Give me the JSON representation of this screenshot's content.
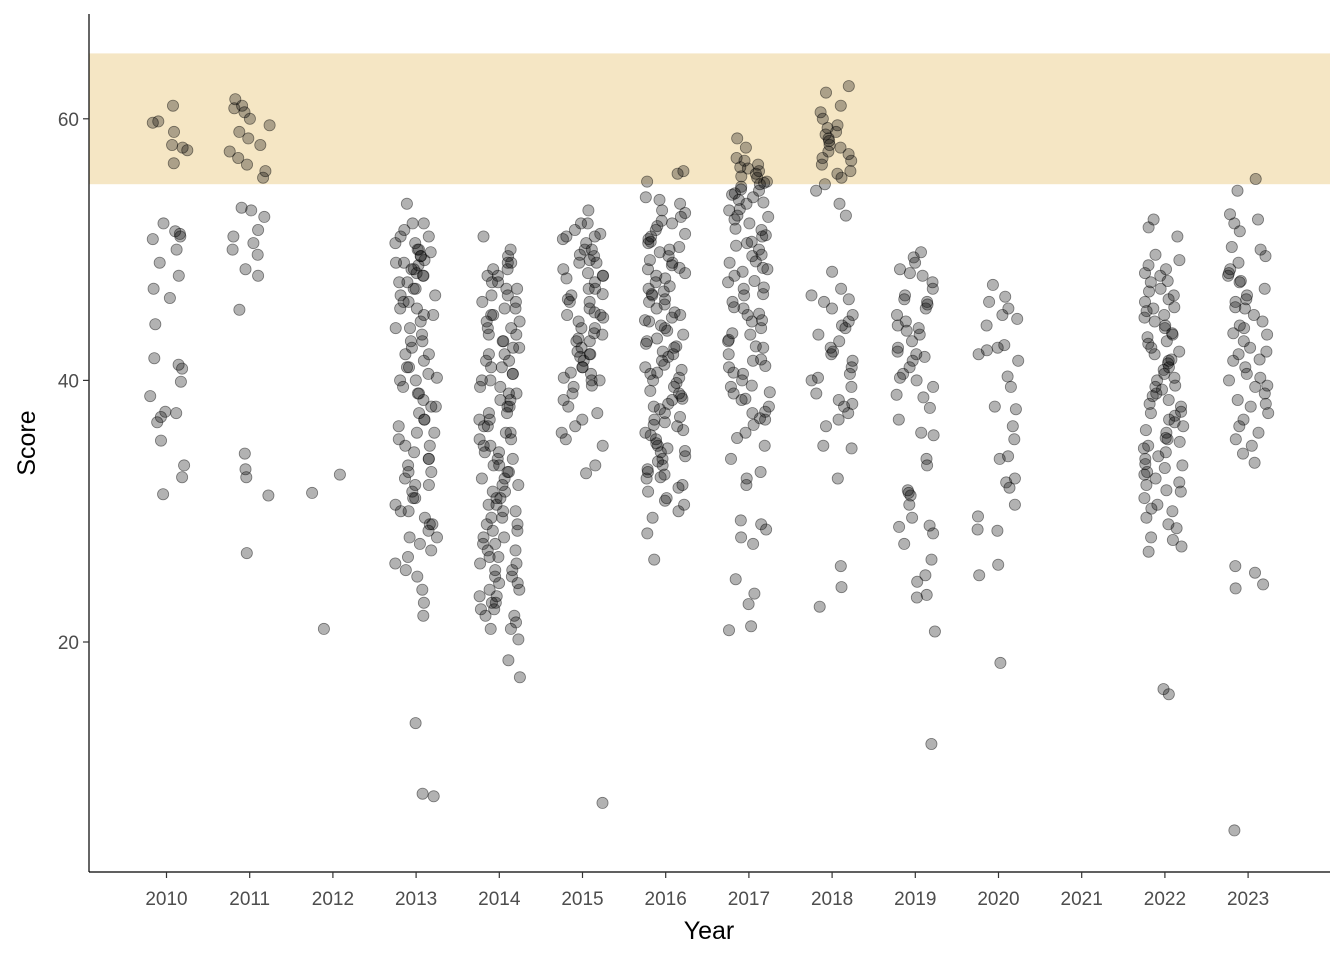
{
  "chart_data": {
    "type": "scatter",
    "title": "",
    "xlabel": "Year",
    "ylabel": "Score",
    "categories": [
      "2010",
      "2011",
      "2012",
      "2013",
      "2014",
      "2015",
      "2016",
      "2017",
      "2018",
      "2019",
      "2020",
      "2021",
      "2022",
      "2023"
    ],
    "y_ticks": [
      20,
      40,
      60
    ],
    "ylim": [
      3.5,
      68
    ],
    "grid": false,
    "legend": "none",
    "highlight_band": {
      "ymin": 55,
      "ymax": 65,
      "color": "#f5e6c4"
    },
    "point_style": {
      "color": "#000000",
      "opacity": 0.3
    },
    "groups": [
      {
        "year": "2010",
        "points": [
          61,
          59.8,
          58,
          57.6,
          59,
          56.6,
          59.7,
          57.8,
          51.4,
          51,
          50,
          49,
          48,
          47,
          46.3,
          44.3,
          41.7,
          41.2,
          40.9,
          39.9,
          38.8,
          37.6,
          37.5,
          37.2,
          36.8,
          35.4,
          33.5,
          32.6,
          31.3,
          52,
          51.2,
          50.8
        ]
      },
      {
        "year": "2011",
        "points": [
          61.5,
          61,
          60.5,
          60,
          59.5,
          58.5,
          58,
          57,
          56.5,
          56,
          55.5,
          53.2,
          53,
          52.5,
          51.5,
          51,
          50.5,
          50,
          49.6,
          48.5,
          48,
          45.4,
          34.4,
          33.2,
          32.6,
          31.2,
          26.8,
          57.5,
          59,
          60.8
        ]
      },
      {
        "year": "2012",
        "points": [
          32.8,
          31.4,
          21
        ]
      },
      {
        "year": "2013",
        "points": [
          53.5,
          52,
          51.5,
          51,
          50.5,
          50,
          49.8,
          49.5,
          49.2,
          49,
          48.8,
          48.5,
          48.2,
          48,
          47.5,
          47,
          46.5,
          46,
          45.5,
          45,
          44.5,
          44,
          43.5,
          43,
          42.5,
          42,
          41.5,
          41,
          40.5,
          40.2,
          40,
          39.5,
          39,
          38.5,
          38,
          37.5,
          37,
          36.5,
          36,
          35.5,
          35,
          34.5,
          34,
          33.5,
          33,
          32.5,
          32,
          31.5,
          31,
          30.5,
          30,
          29.5,
          29,
          28.5,
          28,
          27.5,
          27,
          26.5,
          26,
          25.5,
          25,
          24,
          23,
          22,
          13.8,
          8.4,
          8.2,
          52,
          51,
          50,
          49,
          48,
          47,
          46,
          45,
          44,
          43,
          42,
          41,
          40,
          39,
          38,
          37,
          36,
          35,
          34,
          33,
          32,
          31,
          30,
          29,
          28,
          50.5,
          49.5,
          48.5,
          47.5,
          46.5,
          45.5
        ]
      },
      {
        "year": "2014",
        "points": [
          51,
          50,
          49.5,
          49,
          48.5,
          48,
          47.5,
          47,
          46.5,
          46,
          45.5,
          45,
          44.5,
          44,
          43.5,
          43,
          42.5,
          42,
          41.5,
          41,
          40.5,
          40,
          39.5,
          39,
          38.5,
          38,
          37.5,
          37,
          36.5,
          36,
          35.5,
          35,
          34.5,
          34,
          33.5,
          33,
          32.5,
          32,
          31.5,
          31,
          30.5,
          30,
          29.5,
          29,
          28.5,
          28,
          27.5,
          27,
          26.5,
          26,
          25.5,
          25,
          24.5,
          24,
          23.5,
          23,
          22.5,
          22,
          21.5,
          21,
          20.2,
          18.6,
          17.3,
          49,
          48,
          47,
          46,
          45,
          44,
          43,
          42,
          41,
          40,
          39,
          38,
          37,
          36,
          35,
          34,
          33,
          32,
          31,
          30,
          29,
          28,
          27,
          26,
          25,
          24,
          23,
          22,
          21,
          48.5,
          46.5,
          44.5,
          42.5,
          40.5,
          38.5,
          36.5,
          34.5,
          32.5,
          30.5,
          28.5,
          26.5,
          24.5,
          22.5,
          47.5,
          45.5,
          43.5,
          41.5,
          39.5,
          37.5,
          35.5,
          33.5,
          31.5,
          29.5,
          27.5,
          25.5,
          23.5
        ]
      },
      {
        "year": "2015",
        "points": [
          53,
          52,
          51.5,
          51,
          50.5,
          50,
          49.5,
          49,
          48.5,
          48,
          47.5,
          47,
          46.5,
          46,
          45.5,
          45,
          44.5,
          44,
          43.5,
          43,
          42.5,
          42,
          41.5,
          41,
          40.5,
          40,
          39.5,
          39,
          38.5,
          38,
          37.5,
          37,
          36.5,
          36,
          35.5,
          35,
          33.5,
          32.9,
          7.7,
          51,
          50,
          49,
          48,
          47,
          46,
          45,
          44,
          43,
          42,
          41,
          40,
          52,
          50.8,
          49.2,
          47.8,
          46.2,
          44.8,
          43.2,
          41.8,
          40.2,
          51.2,
          49.6,
          48.2,
          46.6,
          45.2,
          43.6,
          42.2,
          40.6,
          39.6
        ]
      },
      {
        "year": "2016",
        "points": [
          55.2,
          54,
          53.5,
          53,
          52.5,
          52,
          51.5,
          51,
          50.5,
          50,
          49.5,
          49,
          48.5,
          48,
          47.5,
          47,
          46.5,
          46,
          45.5,
          45,
          44.5,
          44,
          43.5,
          43,
          42.5,
          42,
          41.5,
          41,
          40.5,
          40,
          39.5,
          39,
          38.5,
          38,
          37.5,
          37,
          36.5,
          36,
          35.5,
          35,
          34.5,
          34,
          33.5,
          33,
          32.5,
          32,
          31.5,
          31,
          30.5,
          30,
          29.5,
          28.3,
          26.3,
          56,
          55.8,
          53.8,
          52.8,
          51.8,
          50.8,
          49.8,
          48.8,
          47.8,
          46.8,
          45.8,
          44.8,
          43.8,
          42.8,
          41.8,
          40.8,
          39.8,
          38.8,
          37.8,
          36.8,
          35.8,
          34.8,
          33.8,
          32.8,
          31.8,
          30.8,
          52.2,
          50.2,
          48.2,
          46.2,
          44.2,
          42.2,
          40.2,
          38.2,
          36.2,
          34.2,
          51.2,
          49.2,
          47.2,
          45.2,
          43.2,
          41.2,
          39.2,
          37.2,
          35.2,
          33.2,
          50.6,
          48.6,
          46.6,
          44.6,
          42.6,
          40.6,
          38.6,
          36.6,
          34.6,
          32.6
        ]
      },
      {
        "year": "2017",
        "points": [
          58.5,
          57.8,
          57,
          56.8,
          56.5,
          56.2,
          56,
          55.8,
          55.5,
          55.2,
          55,
          54.8,
          54.5,
          54.2,
          54,
          53.8,
          53.5,
          53,
          52.5,
          52,
          51.5,
          51,
          50.5,
          50,
          49.5,
          49,
          48.5,
          48,
          47.5,
          47,
          46.5,
          46,
          45.5,
          45,
          44.5,
          44,
          43.5,
          43,
          42.5,
          42,
          41.5,
          41,
          40.5,
          40,
          39.5,
          39,
          38.5,
          38,
          37.5,
          37,
          36,
          35,
          34,
          33,
          32.5,
          32,
          29.3,
          29,
          28.6,
          28,
          27.5,
          24.8,
          23.7,
          22.9,
          21.2,
          20.9,
          55.6,
          54.6,
          53.6,
          52.6,
          51.6,
          50.6,
          49.6,
          48.6,
          47.6,
          46.6,
          45.6,
          44.6,
          43.6,
          42.6,
          41.6,
          40.6,
          39.6,
          38.6,
          37.6,
          36.6,
          35.6,
          55.1,
          53.1,
          51.1,
          49.1,
          47.1,
          45.1,
          43.1,
          41.1,
          39.1,
          37.1,
          56.3,
          54.3,
          52.3,
          50.3,
          48.3
        ]
      },
      {
        "year": "2018",
        "points": [
          62.5,
          62,
          61,
          60.5,
          60,
          59.5,
          59,
          58.5,
          58,
          57.5,
          57,
          56.5,
          56,
          55.5,
          55,
          54.5,
          53.5,
          52.6,
          48.3,
          47,
          46.5,
          46,
          45.5,
          45,
          44.5,
          44,
          43.5,
          43,
          42.5,
          42,
          41.5,
          41,
          40.5,
          40,
          39.5,
          39,
          38.5,
          38,
          37.5,
          37,
          36.5,
          35,
          34.8,
          32.5,
          25.8,
          24.2,
          22.7,
          58.8,
          57.8,
          56.8,
          55.8,
          59.3,
          58.3,
          57.3,
          46.2,
          44.2,
          42.2,
          40.2,
          38.2
        ]
      },
      {
        "year": "2019",
        "points": [
          49.8,
          49.4,
          49,
          48.5,
          48,
          47.5,
          47,
          46.5,
          46,
          45.5,
          45,
          44.5,
          44,
          43.5,
          43,
          42.5,
          42,
          41.5,
          41,
          40.5,
          40,
          39.5,
          38.9,
          38.7,
          37.9,
          37,
          36,
          35.8,
          34,
          33.5,
          31.6,
          31.4,
          31.2,
          30.5,
          29.5,
          28.9,
          28.8,
          28.3,
          27.5,
          26.3,
          25.1,
          24.6,
          23.6,
          23.4,
          20.8,
          12.2,
          48.2,
          46.2,
          44.2,
          42.2,
          40.2,
          45.8,
          43.8,
          41.8
        ]
      },
      {
        "year": "2020",
        "points": [
          47.3,
          46.4,
          46,
          45.5,
          45,
          44.7,
          44.2,
          42.7,
          42.5,
          42.3,
          42,
          41.5,
          40.3,
          39.5,
          38,
          37.8,
          36.5,
          35.5,
          34.2,
          34,
          32.5,
          32.2,
          31.8,
          30.5,
          29.6,
          28.6,
          28.5,
          25.9,
          25.1,
          18.4
        ]
      },
      {
        "year": "2021",
        "points": []
      },
      {
        "year": "2022",
        "points": [
          52.3,
          51.7,
          51,
          49.6,
          49.2,
          48.8,
          48.5,
          48,
          47.5,
          47,
          46.5,
          46,
          45.5,
          45,
          44.5,
          44,
          43.5,
          43,
          42.5,
          42,
          41.5,
          41,
          40.5,
          40,
          39.5,
          39,
          38.5,
          38,
          37.5,
          37,
          36.5,
          36,
          35.5,
          35,
          34.5,
          34,
          33.5,
          33,
          32.5,
          32,
          31.5,
          31,
          30.5,
          30,
          29.5,
          29,
          28.7,
          28,
          27.8,
          27.3,
          26.9,
          16.4,
          16,
          48.2,
          46.2,
          44.2,
          42.2,
          40.2,
          38.2,
          36.2,
          34.2,
          32.2,
          30.2,
          47.6,
          45.6,
          43.6,
          41.6,
          39.6,
          37.6,
          35.6,
          33.6,
          31.6,
          46.8,
          44.8,
          42.8,
          40.8,
          38.8,
          36.8,
          34.8,
          32.8,
          45.3,
          43.3,
          41.3,
          39.3,
          37.3,
          35.3,
          33.3
        ]
      },
      {
        "year": "2023",
        "points": [
          55.4,
          54.5,
          52.7,
          52.3,
          52,
          51.4,
          50.2,
          50,
          49.5,
          49,
          48.5,
          48,
          47.5,
          47,
          46.5,
          46,
          45.5,
          45,
          44.5,
          44,
          43.5,
          43,
          42.5,
          42,
          41.5,
          41,
          40.5,
          40,
          39.5,
          39,
          38.5,
          38,
          37.5,
          37,
          36.5,
          36,
          35.5,
          35,
          34.4,
          33.7,
          25.8,
          25.3,
          24.4,
          24.1,
          5.6,
          48.2,
          46.2,
          44.2,
          42.2,
          40.2,
          38.2,
          47.6,
          45.6,
          43.6,
          41.6,
          39.6
        ]
      }
    ]
  }
}
